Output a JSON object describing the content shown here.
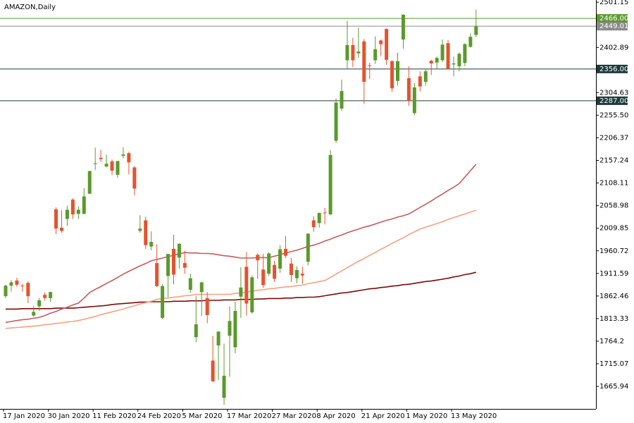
{
  "chart_data": {
    "type": "candlestick",
    "title": "AMAZON,Daily",
    "up_color": "#5a9a2c",
    "down_color": "#e4532f",
    "categories": [
      "17 Jan 2020",
      null,
      null,
      null,
      null,
      null,
      null,
      null,
      "30 Jan 2020",
      null,
      null,
      null,
      null,
      null,
      null,
      null,
      "11 Feb 2020",
      null,
      null,
      null,
      null,
      null,
      null,
      null,
      "24 Feb 2020",
      null,
      null,
      null,
      null,
      null,
      null,
      null,
      "5 Mar 2020",
      null,
      null,
      null,
      null,
      null,
      null,
      null,
      "17 Mar 2020",
      null,
      null,
      null,
      null,
      null,
      null,
      null,
      "27 Mar 2020",
      null,
      null,
      null,
      null,
      null,
      null,
      null,
      "8 Apr 2020",
      null,
      null,
      null,
      null,
      null,
      null,
      null,
      "21 Apr 2020",
      null,
      null,
      null,
      null,
      null,
      null,
      null,
      "1 May 2020",
      null,
      null,
      null,
      null,
      null,
      null,
      null,
      "13 May 2020",
      null,
      null,
      null,
      null
    ],
    "open": [
      1862,
      1885,
      1896,
      1885,
      1891,
      1820,
      1840,
      1865,
      1858,
      2051,
      2011,
      2030,
      2072,
      2041,
      2041,
      2085,
      2150,
      2163,
      2144,
      2155,
      2126,
      2167,
      2173,
      2142,
      2004,
      2027,
      1970,
      1934,
      1815,
      1906,
      1965,
      1946,
      1934,
      1876,
      1773,
      1871,
      1858,
      1722,
      1755,
      1641,
      1776,
      1751,
      1861,
      1926,
      1827,
      1952,
      1920,
      1911,
      1930,
      1922,
      1965,
      1933,
      1901,
      1911,
      1937,
      2027,
      2021,
      2044,
      2040,
      2200,
      2270,
      2375,
      2408,
      2390,
      2416,
      2364,
      2375,
      2418,
      2443,
      2373,
      2330,
      2420,
      2336,
      2260,
      2340,
      2328,
      2374,
      2370,
      2375,
      2412,
      2366,
      2362,
      2369,
      2404,
      2430
    ],
    "high": [
      1887,
      1897,
      1902,
      1889,
      1894,
      1841,
      1858,
      1870,
      1872,
      2055,
      2049,
      2059,
      2075,
      2057,
      2097,
      2135,
      2185,
      2180,
      2170,
      2159,
      2156,
      2186,
      2176,
      2145,
      2038,
      2035,
      2003,
      1975,
      1889,
      1954,
      1996,
      1977,
      1961,
      1911,
      1862,
      1894,
      1871,
      1776,
      1786,
      1759,
      1840,
      1850,
      1925,
      1958,
      1907,
      1955,
      1954,
      1957,
      1939,
      1973,
      1993,
      1945,
      1927,
      1926,
      1999,
      2036,
      2044,
      2054,
      2180,
      2292,
      2333,
      2461,
      2424,
      2446,
      2421,
      2370,
      2427,
      2420,
      2444,
      2375,
      2391,
      2475,
      2362,
      2326,
      2351,
      2357,
      2376,
      2383,
      2420,
      2419,
      2383,
      2392,
      2412,
      2433,
      2485
    ],
    "low": [
      1858,
      1872,
      1883,
      1872,
      1847,
      1817,
      1830,
      1852,
      1850,
      1997,
      2000,
      2015,
      2030,
      2030,
      2040,
      2084,
      2136,
      2154,
      2142,
      2125,
      2120,
      2162,
      2127,
      2081,
      2000,
      1965,
      1962,
      1882,
      1812,
      1860,
      1888,
      1922,
      1911,
      1869,
      1762,
      1819,
      1803,
      1675,
      1680,
      1626,
      1687,
      1738,
      1815,
      1820,
      1824,
      1900,
      1880,
      1906,
      1893,
      1913,
      1945,
      1893,
      1890,
      1889,
      1929,
      2002,
      2011,
      2018,
      2038,
      2195,
      2265,
      2356,
      2360,
      2380,
      2280,
      2334,
      2367,
      2384,
      2365,
      2306,
      2320,
      2400,
      2276,
      2256,
      2307,
      2320,
      2343,
      2355,
      2371,
      2355,
      2340,
      2351,
      2362,
      2403,
      2425
    ],
    "close": [
      1885,
      1892,
      1887,
      1884,
      1862,
      1828,
      1853,
      1858,
      1871,
      2009,
      2004,
      2050,
      2040,
      2050,
      2079,
      2134,
      2151,
      2160,
      2150,
      2135,
      2156,
      2170,
      2153,
      2096,
      2009,
      1973,
      1980,
      1884,
      1884,
      1954,
      1909,
      1976,
      1924,
      1901,
      1801,
      1892,
      1821,
      1677,
      1785,
      1689,
      1808,
      1830,
      1881,
      1846,
      1903,
      1940,
      1886,
      1955,
      1900,
      1964,
      1950,
      1908,
      1919,
      1907,
      1998,
      2012,
      2043,
      2043,
      2169,
      2283,
      2308,
      2408,
      2375,
      2394,
      2328,
      2363,
      2399,
      2410,
      2376,
      2314,
      2373,
      2474,
      2286,
      2316,
      2318,
      2351,
      2368,
      2380,
      2409,
      2357,
      2368,
      2389,
      2410,
      2426,
      2449
    ],
    "moving_averages": [
      {
        "color": "#7d0a0a",
        "values": [
          1834,
          1834,
          1834,
          1835,
          1835,
          1835,
          1835,
          1835,
          1835,
          1836,
          1836,
          1836,
          1836,
          1837,
          1838,
          1839,
          1840,
          1841,
          1842,
          1844,
          1845,
          1846,
          1847,
          1848,
          1849,
          1849,
          1850,
          1850,
          1850,
          1850,
          1851,
          1851,
          1851,
          1852,
          1852,
          1852,
          1853,
          1853,
          1853,
          1854,
          1854,
          1854,
          1855,
          1855,
          1855,
          1856,
          1856,
          1857,
          1857,
          1857,
          1858,
          1858,
          1859,
          1859,
          1860,
          1860,
          1861,
          1863,
          1865,
          1867,
          1869,
          1870,
          1872,
          1874,
          1876,
          1878,
          1879,
          1881,
          1882,
          1884,
          1885,
          1887,
          1888,
          1890,
          1892,
          1894,
          1895,
          1897,
          1899,
          1901,
          1904,
          1906,
          1909,
          1911,
          1914
        ]
      },
      {
        "color": "#f7a07e",
        "values": [
          1792,
          1793,
          1794,
          1795,
          1796,
          1797,
          1798,
          1800,
          1801,
          1803,
          1804,
          1806,
          1807,
          1809,
          1812,
          1815,
          1818,
          1822,
          1825,
          1828,
          1831,
          1834,
          1838,
          1841,
          1845,
          1848,
          1851,
          1855,
          1857,
          1858,
          1860,
          1861,
          1863,
          1864,
          1866,
          1866,
          1866,
          1866,
          1866,
          1866,
          1866,
          1868,
          1869,
          1871,
          1873,
          1875,
          1876,
          1878,
          1879,
          1881,
          1882,
          1883,
          1885,
          1886,
          1889,
          1891,
          1894,
          1896,
          1903,
          1910,
          1917,
          1924,
          1931,
          1938,
          1944,
          1951,
          1957,
          1964,
          1970,
          1977,
          1983,
          1989,
          1996,
          2002,
          2008,
          2012,
          2016,
          2020,
          2024,
          2029,
          2033,
          2037,
          2041,
          2045,
          2049
        ]
      },
      {
        "color": "#c75b5b",
        "values": [
          1805,
          1807,
          1809,
          1811,
          1812,
          1814,
          1816,
          1820,
          1825,
          1829,
          1834,
          1838,
          1843,
          1847,
          1858,
          1870,
          1877,
          1883,
          1890,
          1896,
          1903,
          1910,
          1916,
          1922,
          1928,
          1933,
          1939,
          1942,
          1945,
          1948,
          1951,
          1954,
          1957,
          1956,
          1956,
          1955,
          1955,
          1954,
          1952,
          1950,
          1949,
          1947,
          1945,
          1945,
          1945,
          1946,
          1946,
          1946,
          1949,
          1952,
          1956,
          1959,
          1962,
          1966,
          1970,
          1973,
          1977,
          1982,
          1986,
          1991,
          1995,
          2000,
          2004,
          2008,
          2012,
          2015,
          2019,
          2023,
          2027,
          2030,
          2034,
          2037,
          2041,
          2048,
          2055,
          2062,
          2069,
          2077,
          2084,
          2092,
          2099,
          2107,
          2121,
          2135,
          2149
        ]
      }
    ],
    "levels": [
      {
        "value": 2466.0,
        "label": "2466.00",
        "color": "#5a9a2c"
      },
      {
        "value": 2449.01,
        "label": "2449.01",
        "color": "#8a8a8a"
      },
      {
        "value": 2356.0,
        "label": "2356.00",
        "color": "#1e3a3a"
      },
      {
        "value": 2287.0,
        "label": "2287.00",
        "color": "#1e3a3a"
      }
    ],
    "ylim": [
      1617,
      2506
    ],
    "yticks": [
      2501.15,
      2402.89,
      2304.63,
      {
        "value": 2255.5,
        "label": "2255.50"
      },
      2206.37,
      2157.24,
      2108.11,
      2058.98,
      2009.85,
      1960.72,
      1911.59,
      1862.46,
      1813.33,
      1764.2,
      1715.07,
      1665.94
    ]
  }
}
